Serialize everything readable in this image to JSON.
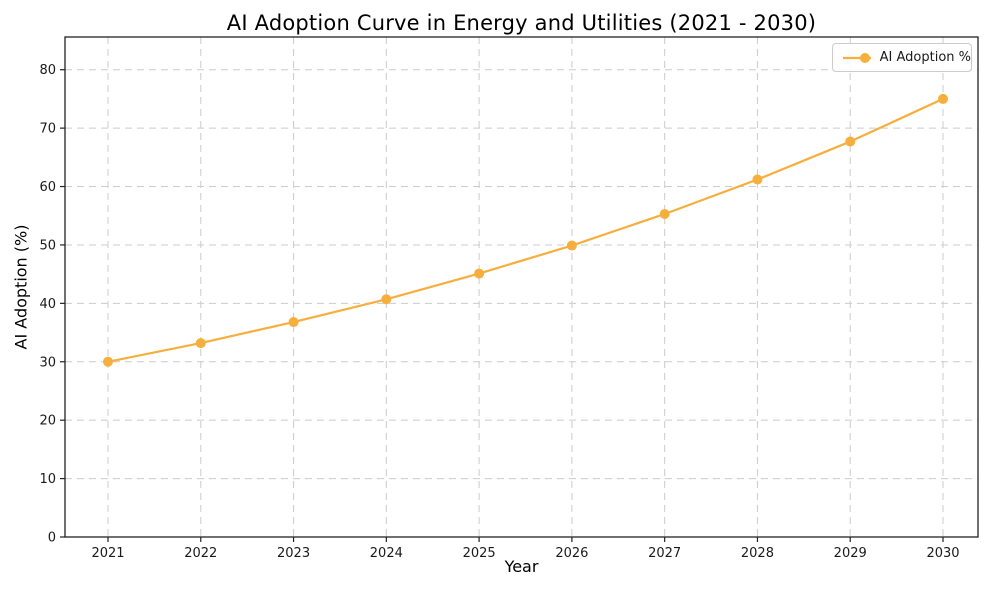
{
  "chart_data": {
    "type": "line",
    "title": "AI Adoption Curve in Energy and Utilities (2021 - 2030)",
    "xlabel": "Year",
    "ylabel": "AI Adoption (%)",
    "categories": [
      "2021",
      "2022",
      "2023",
      "2024",
      "2025",
      "2026",
      "2027",
      "2028",
      "2029",
      "2030"
    ],
    "series": [
      {
        "name": "AI Adoption %",
        "values": [
          30.0,
          33.2,
          36.8,
          40.7,
          45.1,
          49.9,
          55.3,
          61.2,
          67.7,
          75.0
        ]
      }
    ],
    "yticks": [
      0,
      10,
      20,
      30,
      40,
      50,
      60,
      70,
      80
    ],
    "ylim": [
      0,
      85.6
    ],
    "grid": true,
    "grid_style": "dashed",
    "legend_position": "upper right",
    "line_color": "#F6AE3C",
    "marker": "circle",
    "grid_color": "#cccccc",
    "spine_color": "#222222",
    "text_color": "#1a1a1a"
  }
}
